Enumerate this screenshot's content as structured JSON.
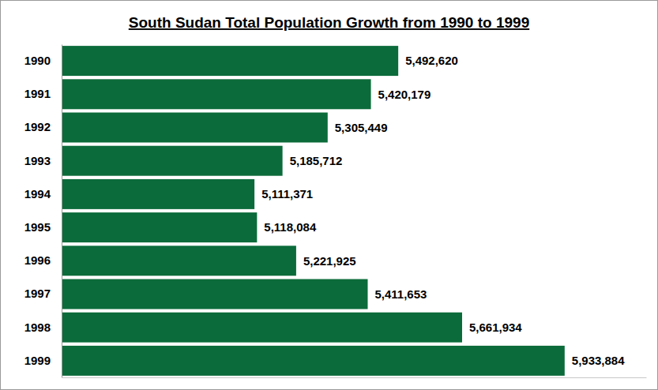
{
  "chart_data": {
    "type": "bar",
    "title": "South Sudan Total Population Growth from 1990 to 1999",
    "orientation": "horizontal",
    "categories": [
      "1990",
      "1991",
      "1992",
      "1993",
      "1994",
      "1995",
      "1996",
      "1997",
      "1998",
      "1999"
    ],
    "values": [
      5492620,
      5420179,
      5305449,
      5185712,
      5111371,
      5118084,
      5221925,
      5411653,
      5661934,
      5933884
    ],
    "value_labels": [
      "5,492,620",
      "5,420,179",
      "5,305,449",
      "5,185,712",
      "5,111,371",
      "5,118,084",
      "5,221,925",
      "5,411,653",
      "5,661,934",
      "5,933,884"
    ],
    "color": "#0b6b3a",
    "xlim": [
      4600000,
      6150000
    ],
    "data_labels": true,
    "tick_labels": "y",
    "grid": false
  }
}
